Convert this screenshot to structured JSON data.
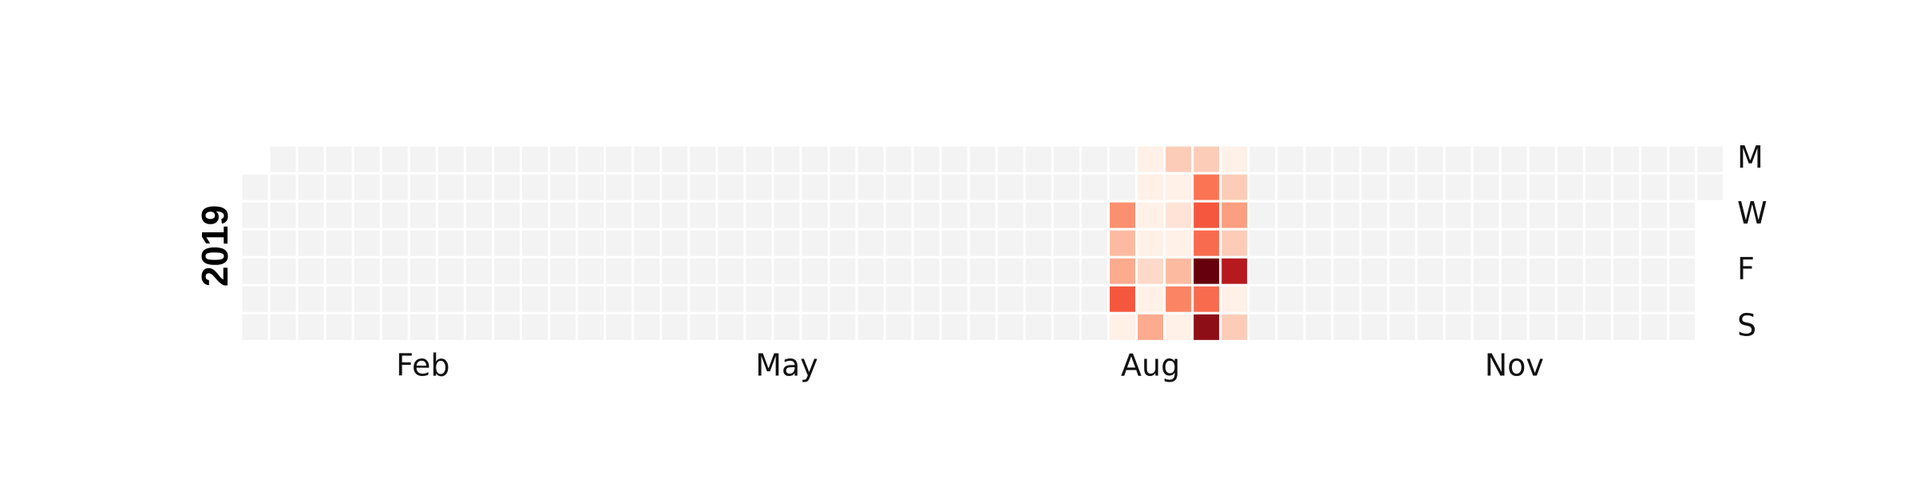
{
  "chart_data": {
    "type": "heatmap",
    "title": "",
    "year_label": "2019",
    "x_tick_labels": [
      "Feb",
      "May",
      "Aug",
      "Nov"
    ],
    "x_tick_weeks": [
      6,
      19,
      32,
      45
    ],
    "y_tick_labels": [
      "M",
      "W",
      "F",
      "S"
    ],
    "y_tick_days": [
      0,
      2,
      4,
      6
    ],
    "first_weekday_2019": 1,
    "days_in_year": 365,
    "weeks": 53,
    "color_scale": "Reds",
    "empty_color": "#f3f3f3",
    "value_range": [
      0,
      10
    ],
    "active_cells": [
      {
        "week": 31,
        "day": 2,
        "value": 4
      },
      {
        "week": 31,
        "day": 3,
        "value": 2.5
      },
      {
        "week": 31,
        "day": 4,
        "value": 3
      },
      {
        "week": 31,
        "day": 5,
        "value": 6
      },
      {
        "week": 31,
        "day": 6,
        "value": 0.5
      },
      {
        "week": 32,
        "day": 0,
        "value": 0.5
      },
      {
        "week": 32,
        "day": 1,
        "value": 0.5
      },
      {
        "week": 32,
        "day": 2,
        "value": 0.5
      },
      {
        "week": 32,
        "day": 3,
        "value": 0.5
      },
      {
        "week": 32,
        "day": 4,
        "value": 1.5
      },
      {
        "week": 32,
        "day": 5,
        "value": 0.5
      },
      {
        "week": 32,
        "day": 6,
        "value": 3
      },
      {
        "week": 33,
        "day": 0,
        "value": 2
      },
      {
        "week": 33,
        "day": 1,
        "value": 0.5
      },
      {
        "week": 33,
        "day": 2,
        "value": 1
      },
      {
        "week": 33,
        "day": 3,
        "value": 0.5
      },
      {
        "week": 33,
        "day": 4,
        "value": 2.5
      },
      {
        "week": 33,
        "day": 5,
        "value": 4.5
      },
      {
        "week": 33,
        "day": 6,
        "value": 0.5
      },
      {
        "week": 34,
        "day": 0,
        "value": 2
      },
      {
        "week": 34,
        "day": 1,
        "value": 5
      },
      {
        "week": 34,
        "day": 2,
        "value": 6
      },
      {
        "week": 34,
        "day": 3,
        "value": 5.5
      },
      {
        "week": 34,
        "day": 4,
        "value": 10
      },
      {
        "week": 34,
        "day": 5,
        "value": 5.5
      },
      {
        "week": 34,
        "day": 6,
        "value": 9
      },
      {
        "week": 35,
        "day": 0,
        "value": 0.5
      },
      {
        "week": 35,
        "day": 1,
        "value": 2
      },
      {
        "week": 35,
        "day": 2,
        "value": 3.5
      },
      {
        "week": 35,
        "day": 3,
        "value": 2
      },
      {
        "week": 35,
        "day": 4,
        "value": 8
      },
      {
        "week": 35,
        "day": 5,
        "value": 0.5
      },
      {
        "week": 35,
        "day": 6,
        "value": 2
      }
    ],
    "colors": {
      "0.5": "#fff0e8",
      "1": "#fee3d6",
      "1.5": "#fdd9c9",
      "2": "#fdccb8",
      "2.5": "#fcbba1",
      "3": "#fcab8f",
      "3.5": "#fc9e80",
      "4": "#fb9070",
      "4.5": "#fb8464",
      "5": "#fb7454",
      "5.5": "#f96b4f",
      "6": "#f4573e",
      "8": "#b61a1e",
      "9": "#8e0e18",
      "10": "#67000d"
    }
  }
}
